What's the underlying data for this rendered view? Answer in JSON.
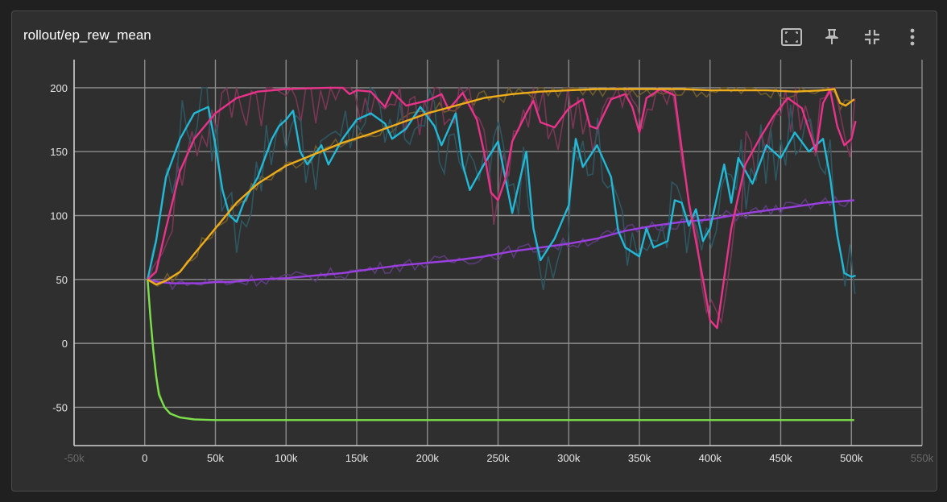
{
  "card": {
    "title": "rollout/ep_rew_mean",
    "toolbar": [
      {
        "name": "fit-domain-button",
        "icon": "fit-to-data-icon"
      },
      {
        "name": "pin-button",
        "icon": "pin-icon"
      },
      {
        "name": "collapse-button",
        "icon": "collapse-icon"
      },
      {
        "name": "more-options-button",
        "icon": "more-vertical-icon"
      }
    ]
  },
  "chart_data": {
    "type": "line",
    "xlabel": "",
    "ylabel": "",
    "xlim": [
      -50000,
      550000
    ],
    "ylim": [
      -80,
      222
    ],
    "x_ticks": [
      -50000,
      0,
      50000,
      100000,
      150000,
      200000,
      250000,
      300000,
      350000,
      400000,
      450000,
      500000,
      550000
    ],
    "x_tick_labels": [
      "-50k",
      "0",
      "50k",
      "100k",
      "150k",
      "200k",
      "250k",
      "300k",
      "350k",
      "400k",
      "450k",
      "500k",
      "550k"
    ],
    "y_ticks": [
      -50,
      0,
      50,
      100,
      150,
      200
    ],
    "y_tick_labels": [
      "-50",
      "0",
      "50",
      "100",
      "150",
      "200"
    ],
    "grid": true,
    "legend": "none",
    "series": [
      {
        "color": "#f0ad1a",
        "raw_color": "#6e5a2c",
        "x": [
          2000,
          8000,
          15000,
          25000,
          35000,
          50000,
          65000,
          80000,
          100000,
          120000,
          140000,
          160000,
          180000,
          200000,
          220000,
          240000,
          260000,
          280000,
          300000,
          320000,
          340000,
          360000,
          380000,
          400000,
          420000,
          440000,
          460000,
          480000,
          488000,
          492000,
          496000,
          502000
        ],
        "values": [
          50,
          46,
          49,
          56,
          70,
          90,
          110,
          125,
          139,
          148,
          157,
          164,
          172,
          180,
          186,
          192,
          195,
          197,
          198,
          199,
          199,
          199,
          199,
          198,
          198,
          198,
          197,
          198,
          199,
          188,
          186,
          191
        ]
      },
      {
        "color": "#e8338a",
        "raw_color": "#7a3655",
        "x": [
          2000,
          8000,
          15000,
          25000,
          35000,
          50000,
          65000,
          80000,
          100000,
          130000,
          140000,
          145000,
          150000,
          160000,
          170000,
          175000,
          185000,
          200000,
          210000,
          215000,
          225000,
          235000,
          240000,
          245000,
          250000,
          255000,
          260000,
          270000,
          275000,
          280000,
          290000,
          300000,
          310000,
          315000,
          320000,
          330000,
          340000,
          345000,
          350000,
          355000,
          365000,
          375000,
          385000,
          395000,
          400000,
          405000,
          415000,
          425000,
          435000,
          445000,
          455000,
          465000,
          475000,
          480000,
          485000,
          490000,
          495000,
          500000,
          503000
        ],
        "values": [
          50,
          56,
          90,
          135,
          160,
          180,
          192,
          197,
          199,
          200,
          200,
          195,
          198,
          197,
          185,
          197,
          186,
          190,
          195,
          183,
          196,
          175,
          150,
          118,
          112,
          128,
          158,
          180,
          190,
          173,
          169,
          184,
          191,
          170,
          168,
          191,
          195,
          185,
          165,
          192,
          199,
          194,
          110,
          50,
          18,
          12,
          90,
          140,
          160,
          178,
          192,
          184,
          150,
          188,
          198,
          170,
          155,
          160,
          174
        ]
      },
      {
        "color": "#22b8d6",
        "raw_color": "#2d5660",
        "x": [
          2000,
          8000,
          15000,
          25000,
          35000,
          45000,
          50000,
          55000,
          60000,
          65000,
          70000,
          80000,
          90000,
          95000,
          100000,
          105000,
          110000,
          115000,
          125000,
          130000,
          140000,
          150000,
          160000,
          170000,
          175000,
          185000,
          195000,
          205000,
          210000,
          220000,
          225000,
          230000,
          240000,
          250000,
          255000,
          260000,
          270000,
          275000,
          280000,
          290000,
          300000,
          305000,
          310000,
          320000,
          330000,
          335000,
          340000,
          350000,
          355000,
          360000,
          370000,
          375000,
          380000,
          385000,
          390000,
          395000,
          400000,
          410000,
          415000,
          420000,
          430000,
          440000,
          450000,
          460000,
          470000,
          480000,
          485000,
          490000,
          495000,
          500000,
          503000
        ],
        "values": [
          50,
          80,
          130,
          160,
          180,
          185,
          155,
          120,
          100,
          95,
          110,
          130,
          160,
          170,
          175,
          182,
          150,
          140,
          155,
          140,
          160,
          175,
          180,
          172,
          160,
          168,
          185,
          170,
          155,
          180,
          140,
          120,
          140,
          158,
          130,
          102,
          150,
          90,
          65,
          82,
          108,
          160,
          138,
          155,
          130,
          88,
          75,
          68,
          90,
          75,
          80,
          112,
          110,
          92,
          105,
          80,
          90,
          140,
          110,
          145,
          125,
          155,
          145,
          165,
          150,
          160,
          130,
          85,
          55,
          52,
          53
        ]
      },
      {
        "color": "#9b3fe0",
        "raw_color": "#5a3d78",
        "x": [
          2000,
          10000,
          20000,
          30000,
          40000,
          50000,
          60000,
          80000,
          100000,
          120000,
          140000,
          160000,
          180000,
          200000,
          220000,
          240000,
          260000,
          280000,
          300000,
          320000,
          340000,
          360000,
          380000,
          400000,
          420000,
          440000,
          460000,
          480000,
          502000
        ],
        "values": [
          50,
          48,
          47,
          47,
          47,
          48,
          48,
          50,
          51,
          53,
          55,
          58,
          61,
          63,
          65,
          68,
          72,
          75,
          78,
          82,
          88,
          92,
          95,
          97,
          101,
          104,
          107,
          110,
          112
        ]
      },
      {
        "color": "#7ce04a",
        "raw_color": "#4a6d34",
        "x": [
          2000,
          4000,
          6000,
          8000,
          10000,
          14000,
          18000,
          25000,
          35000,
          50000,
          80000,
          150000,
          300000,
          502000
        ],
        "values": [
          50,
          20,
          -5,
          -25,
          -40,
          -50,
          -55,
          -58,
          -59.5,
          -60,
          -60,
          -60,
          -60,
          -60
        ]
      }
    ]
  }
}
